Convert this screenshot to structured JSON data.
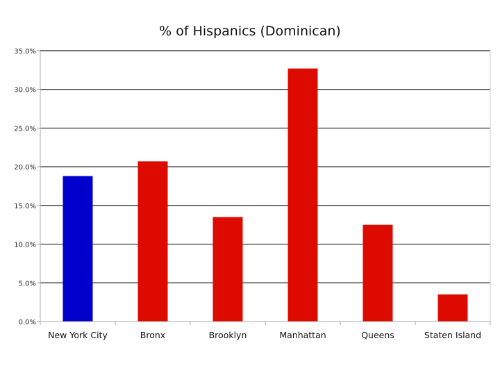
{
  "chart_data": {
    "type": "bar",
    "title": "% of Hispanics (Dominican)",
    "xlabel": "",
    "ylabel": "",
    "categories": [
      "New York City",
      "Bronx",
      "Brooklyn",
      "Manhattan",
      "Queens",
      "Staten Island"
    ],
    "values": [
      18.8,
      20.7,
      13.5,
      32.7,
      12.5,
      3.5
    ],
    "bar_colors": [
      "#0000cc",
      "#dd0a00",
      "#dd0a00",
      "#dd0a00",
      "#dd0a00",
      "#dd0a00"
    ],
    "ylim": [
      0,
      35
    ],
    "yticks": [
      0,
      5,
      10,
      15,
      20,
      25,
      30,
      35
    ],
    "ytick_labels": [
      "0.0%",
      "5.0%",
      "10.0%",
      "15.0%",
      "20.0%",
      "25.0%",
      "30.0%",
      "35.0%"
    ],
    "grid": true,
    "legend": "none"
  }
}
